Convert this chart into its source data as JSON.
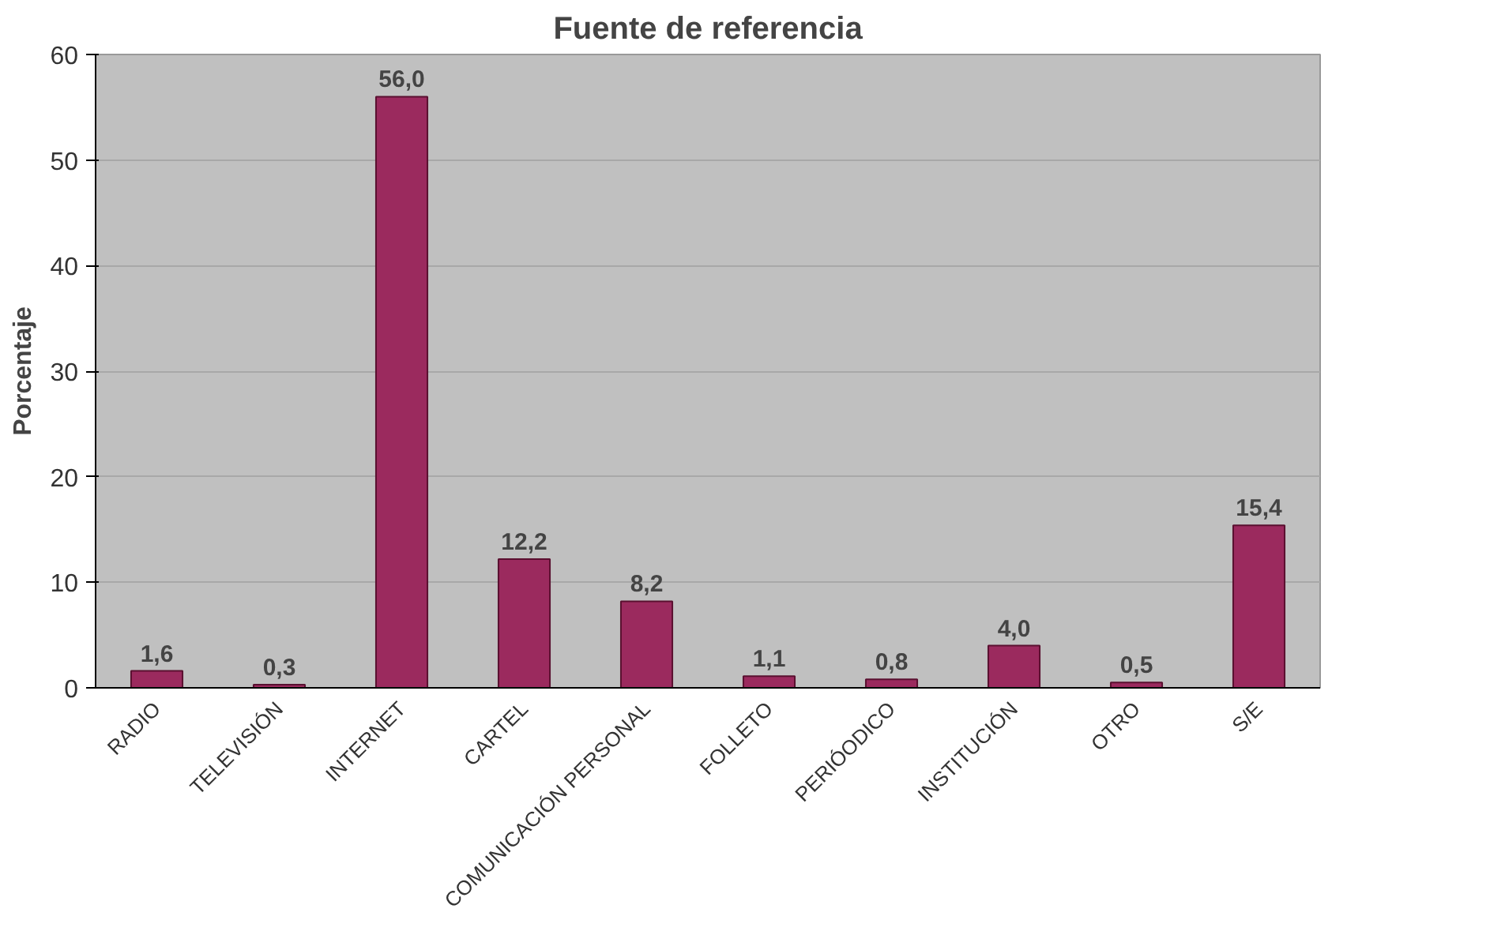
{
  "chart_data": {
    "type": "bar",
    "title": "Fuente de referencia",
    "ylabel": "Porcentaje",
    "categories": [
      "RADIO",
      "TELEVISIÓN",
      "INTERNET",
      "CARTEL",
      "COMUNICACIÓN PERSONAL",
      "FOLLETO",
      "PERIÓODICO",
      "INSTITUCIÓN",
      "OTRO",
      "S/E"
    ],
    "values": [
      1.6,
      0.3,
      56.0,
      12.2,
      8.2,
      1.1,
      0.8,
      4.0,
      0.5,
      15.4
    ],
    "value_labels": [
      "1,6",
      "0,3",
      "56,0",
      "12,2",
      "8,2",
      "1,1",
      "0,8",
      "4,0",
      "0,5",
      "15,4"
    ],
    "color": "#9b2a5e",
    "ylim": [
      0,
      60
    ],
    "yticks": [
      0,
      10,
      20,
      30,
      40,
      50,
      60
    ],
    "grid": "y"
  }
}
